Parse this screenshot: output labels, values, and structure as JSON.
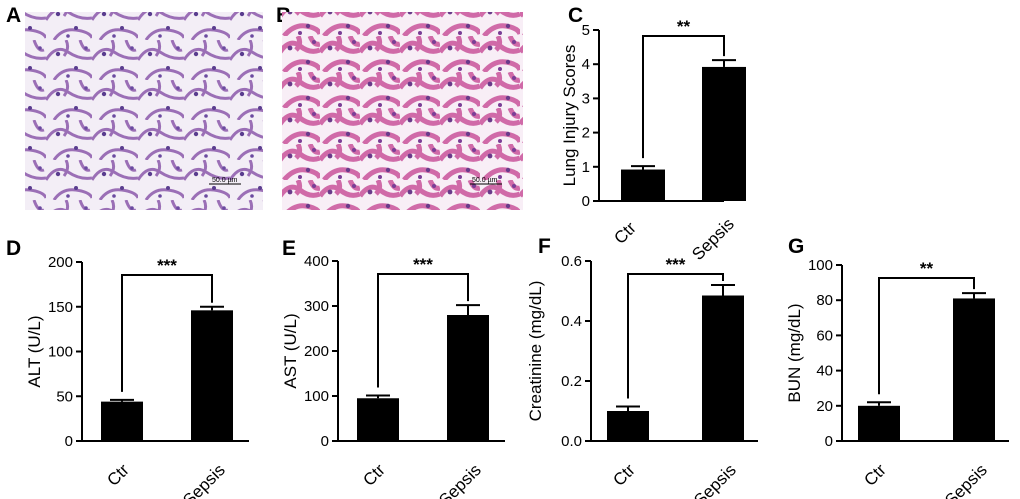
{
  "panels": [
    {
      "letter": "A",
      "scale_bar": "50.0 µm"
    },
    {
      "letter": "B",
      "scale_bar": "50.0 µm"
    }
  ],
  "chart_data": [
    {
      "letter": "C",
      "type": "bar",
      "categories": [
        "Ctr",
        "Sepsis"
      ],
      "values": [
        0.92,
        3.92
      ],
      "errors": [
        0.1,
        0.2
      ],
      "ylabel": "Lung Injury Scores",
      "ylim": [
        0,
        5
      ],
      "yticks": [
        "0",
        "1",
        "2",
        "3",
        "4",
        "5"
      ],
      "significance": "**"
    },
    {
      "letter": "D",
      "type": "bar",
      "categories": [
        "Ctr",
        "Sepsis"
      ],
      "values": [
        44,
        146
      ],
      "errors": [
        2,
        4
      ],
      "ylabel": "ALT (U/L)",
      "ylim": [
        0,
        200
      ],
      "yticks": [
        "0",
        "50",
        "100",
        "150",
        "200"
      ],
      "significance": "***"
    },
    {
      "letter": "E",
      "type": "bar",
      "categories": [
        "Ctr",
        "Sepsis"
      ],
      "values": [
        95,
        280
      ],
      "errors": [
        6,
        22
      ],
      "ylabel": "AST (U/L)",
      "ylim": [
        0,
        400
      ],
      "yticks": [
        "0",
        "100",
        "200",
        "300",
        "400"
      ],
      "significance": "***"
    },
    {
      "letter": "F",
      "type": "bar",
      "categories": [
        "Ctr",
        "Sepsis"
      ],
      "values": [
        0.1,
        0.485
      ],
      "errors": [
        0.015,
        0.035
      ],
      "ylabel": "Creatinine (mg/dL)",
      "ylim": [
        0,
        0.6
      ],
      "yticks": [
        "0.0",
        "0.2",
        "0.4",
        "0.6"
      ],
      "significance": "***"
    },
    {
      "letter": "G",
      "type": "bar",
      "categories": [
        "Ctr",
        "Sepsis"
      ],
      "values": [
        20,
        81
      ],
      "errors": [
        2,
        3
      ],
      "ylabel": "BUN (mg/dL)",
      "ylim": [
        0,
        100
      ],
      "yticks": [
        "0",
        "20",
        "40",
        "60",
        "80",
        "100"
      ],
      "significance": "**"
    }
  ]
}
